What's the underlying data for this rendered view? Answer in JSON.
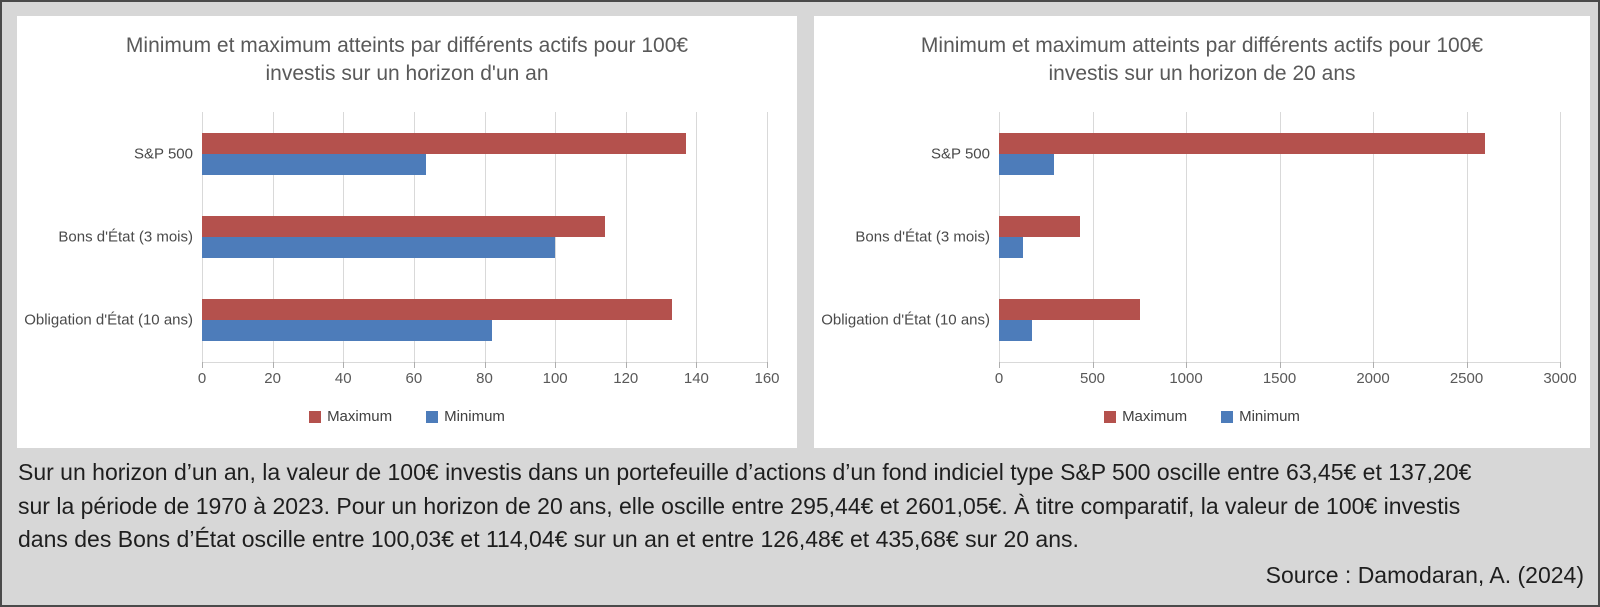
{
  "page": {
    "background_color": "#d7d7d7",
    "panel_background": "#ffffff"
  },
  "chart_data": [
    {
      "type": "bar",
      "orientation": "horizontal",
      "title": "Minimum et maximum atteints par différents actifs pour 100€ investis sur un horizon d'un an",
      "title_lines": [
        "Minimum et maximum atteints par différents actifs pour 100€",
        "investis sur un horizon d'un an"
      ],
      "categories": [
        "S&P 500",
        "Bons d'État (3 mois)",
        "Obligation d'État (10 ans)"
      ],
      "series": [
        {
          "name": "Maximum",
          "color": "#b4514d",
          "values": [
            137.2,
            114.04,
            133
          ]
        },
        {
          "name": "Minimum",
          "color": "#4d7cba",
          "values": [
            63.45,
            100.03,
            82
          ]
        }
      ],
      "x_ticks": [
        0,
        20,
        40,
        60,
        80,
        100,
        120,
        140,
        160
      ],
      "xlim": [
        0,
        160
      ],
      "grid": true,
      "legend_position": "bottom"
    },
    {
      "type": "bar",
      "orientation": "horizontal",
      "title": "Minimum et maximum atteints par différents actifs pour 100€ investis sur un horizon de 20 ans",
      "title_lines": [
        "Minimum et maximum atteints par différents actifs pour 100€",
        "investis sur un horizon de 20 ans"
      ],
      "categories": [
        "S&P 500",
        "Bons d'État (3 mois)",
        "Obligation d'État (10 ans)"
      ],
      "series": [
        {
          "name": "Maximum",
          "color": "#b4514d",
          "values": [
            2601.05,
            435.68,
            755
          ]
        },
        {
          "name": "Minimum",
          "color": "#4d7cba",
          "values": [
            295.44,
            126.48,
            175
          ]
        }
      ],
      "x_ticks": [
        0,
        500,
        1000,
        1500,
        2000,
        2500,
        3000
      ],
      "xlim": [
        0,
        3000
      ],
      "grid": true,
      "legend_position": "bottom"
    }
  ],
  "caption": {
    "lines": [
      "Sur un horizon d’un an, la valeur de 100€ investis dans un portefeuille d’actions d’un fond indiciel type S&P 500 oscille entre 63,45€ et 137,20€",
      "sur la période de 1970 à 2023. Pour un horizon de 20 ans, elle oscille entre 295,44€ et 2601,05€. À titre comparatif, la valeur de 100€ investis",
      "dans des Bons d’État oscille entre 100,03€ et 114,04€ sur un an et entre 126,48€ et 435,68€ sur 20 ans."
    ],
    "source": "Source : Damodaran, A. (2024)"
  }
}
